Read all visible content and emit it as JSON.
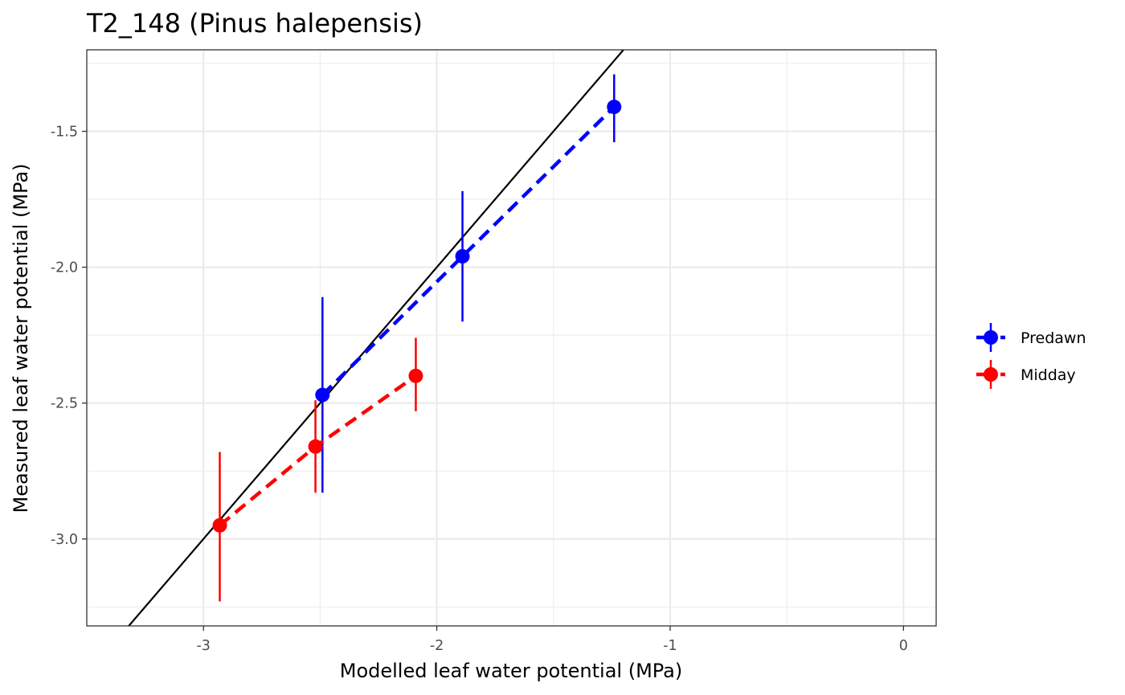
{
  "chart_data": {
    "type": "scatter",
    "title": "T2_148 (Pinus halepensis)",
    "xlabel": "Modelled leaf water potential (MPa)",
    "ylabel": "Measured leaf water potential (MPa)",
    "xlim": [
      -3.5,
      0.14
    ],
    "ylim": [
      -3.32,
      -1.2
    ],
    "x_ticks": [
      -3,
      -2,
      -1,
      0
    ],
    "x_tick_labels": [
      "-3",
      "-2",
      "-1",
      "0"
    ],
    "y_ticks": [
      -3.0,
      -2.5,
      -2.0,
      -1.5
    ],
    "y_tick_labels": [
      "-3.0",
      "-2.5",
      "-2.0",
      "-1.5"
    ],
    "grid": true,
    "legend_position": "right",
    "reference_line": {
      "slope": 1,
      "intercept": 0,
      "color": "#000000"
    },
    "series": [
      {
        "name": "Predawn",
        "color": "#0000ff",
        "points": [
          {
            "x": -2.49,
            "y": -2.47,
            "ymin": -2.83,
            "ymax": -2.11
          },
          {
            "x": -1.89,
            "y": -1.96,
            "ymin": -2.2,
            "ymax": -1.72
          },
          {
            "x": -1.24,
            "y": -1.41,
            "ymin": -1.54,
            "ymax": -1.29
          }
        ]
      },
      {
        "name": "Midday",
        "color": "#ff0000",
        "points": [
          {
            "x": -2.93,
            "y": -2.95,
            "ymin": -3.23,
            "ymax": -2.68
          },
          {
            "x": -2.52,
            "y": -2.66,
            "ymin": -2.83,
            "ymax": -2.49
          },
          {
            "x": -2.09,
            "y": -2.4,
            "ymin": -2.53,
            "ymax": -2.26
          }
        ]
      }
    ]
  }
}
